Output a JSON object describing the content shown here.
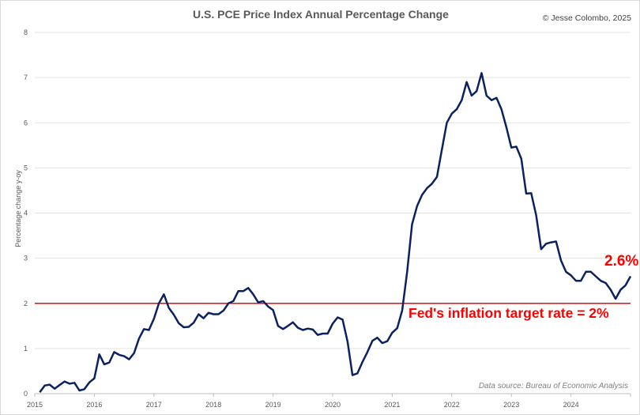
{
  "chart_data": {
    "type": "line",
    "title": "U.S. PCE Price Index Annual Percentage Change",
    "credit": "© Jesse Colombo, 2025",
    "ylabel": "Percentage change y-oy",
    "xlabel": "",
    "ylim": [
      0,
      8
    ],
    "yticks": [
      "0",
      "1",
      "2",
      "3",
      "4",
      "5",
      "6",
      "7",
      "8"
    ],
    "xticks": [
      "2015",
      "2016",
      "2017",
      "2018",
      "2019",
      "2020",
      "2021",
      "2022",
      "2023",
      "2024"
    ],
    "xrange": [
      "2015-01",
      "2025-01"
    ],
    "grid": true,
    "source": "Data source: Bureau of Economic Analysis",
    "line_color": "#0b2160",
    "reference_line": {
      "value": 2,
      "label": "Fed's inflation target rate = 2%",
      "color": "#ff0000"
    },
    "last_value_label": "2.6%",
    "start": "2015-01",
    "frequency": "monthly",
    "values": [
      0.03,
      0.18,
      0.2,
      0.11,
      0.19,
      0.27,
      0.22,
      0.24,
      0.07,
      0.1,
      0.25,
      0.34,
      0.87,
      0.65,
      0.69,
      0.92,
      0.86,
      0.83,
      0.76,
      0.9,
      1.22,
      1.43,
      1.41,
      1.66,
      2.0,
      2.2,
      1.9,
      1.75,
      1.56,
      1.47,
      1.48,
      1.57,
      1.76,
      1.67,
      1.79,
      1.76,
      1.76,
      1.84,
      2.0,
      2.05,
      2.27,
      2.27,
      2.34,
      2.2,
      2.02,
      2.05,
      1.93,
      1.85,
      1.5,
      1.43,
      1.5,
      1.58,
      1.46,
      1.41,
      1.44,
      1.42,
      1.3,
      1.33,
      1.33,
      1.55,
      1.69,
      1.64,
      1.15,
      0.41,
      0.45,
      0.7,
      0.92,
      1.17,
      1.24,
      1.12,
      1.16,
      1.35,
      1.45,
      1.84,
      2.7,
      3.75,
      4.15,
      4.4,
      4.55,
      4.65,
      4.8,
      5.4,
      6.0,
      6.2,
      6.3,
      6.5,
      6.9,
      6.6,
      6.7,
      7.1,
      6.6,
      6.5,
      6.55,
      6.3,
      5.9,
      5.45,
      5.47,
      5.2,
      4.43,
      4.44,
      3.95,
      3.2,
      3.32,
      3.35,
      3.37,
      2.95,
      2.7,
      2.62,
      2.5,
      2.5,
      2.7,
      2.7,
      2.6,
      2.5,
      2.45,
      2.3,
      2.1,
      2.3,
      2.4,
      2.6
    ]
  }
}
